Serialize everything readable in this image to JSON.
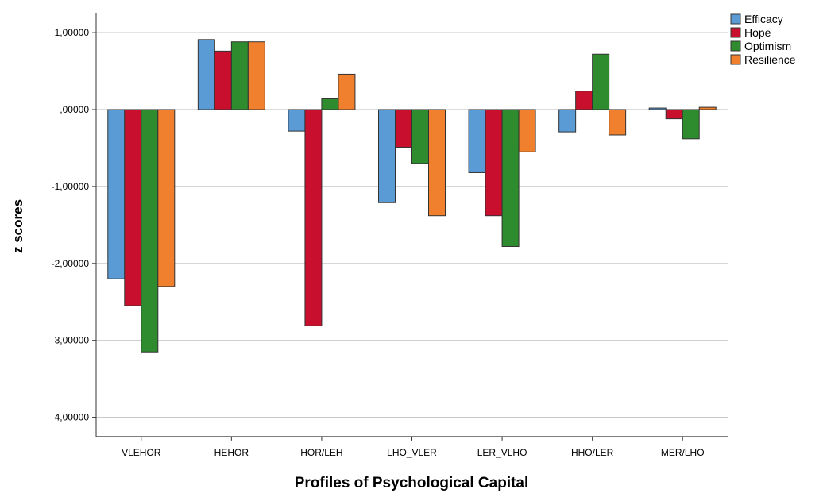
{
  "chart_data": {
    "type": "bar",
    "xlabel": "Profiles of Psychological Capital",
    "ylabel": "z scores",
    "categories": [
      "VLEHOR",
      "HEHOR",
      "HOR/LEH",
      "LHO_VLER",
      "LER_VLHO",
      "HHO/LER",
      "MER/LHO"
    ],
    "ylim": [
      -4.25,
      1.25
    ],
    "yticks": [
      1,
      0,
      -1,
      -2,
      -3,
      -4
    ],
    "ytick_labels": [
      "1,00000",
      ",00000",
      "-1,00000",
      "-2,00000",
      "-3,00000",
      "-4,00000"
    ],
    "grid": true,
    "legend_position": "top-right",
    "series": [
      {
        "name": "Efficacy",
        "color": "#5b9bd5",
        "values": [
          -2.2,
          0.91,
          -0.28,
          -1.21,
          -0.82,
          -0.29,
          0.02
        ]
      },
      {
        "name": "Hope",
        "color": "#c8102e",
        "values": [
          -2.55,
          0.76,
          -2.81,
          -0.49,
          -1.38,
          0.24,
          -0.12
        ]
      },
      {
        "name": "Optimism",
        "color": "#2e8b2e",
        "values": [
          -3.15,
          0.88,
          0.14,
          -0.7,
          -1.78,
          0.72,
          -0.38
        ]
      },
      {
        "name": "Resilience",
        "color": "#f07f2e",
        "values": [
          -2.3,
          0.88,
          0.46,
          -1.38,
          -0.55,
          -0.33,
          0.03
        ]
      }
    ]
  }
}
